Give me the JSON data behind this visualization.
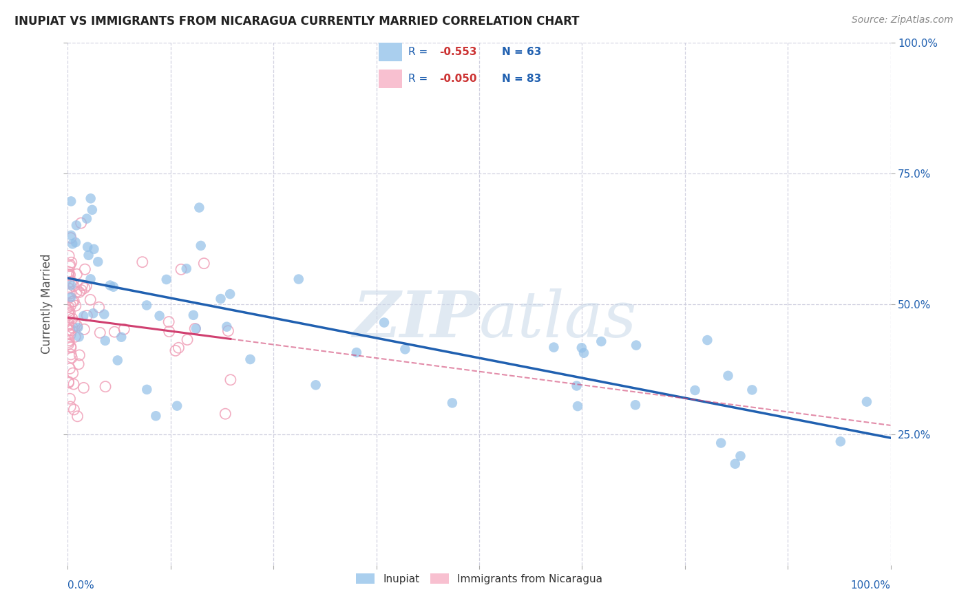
{
  "title": "INUPIAT VS IMMIGRANTS FROM NICARAGUA CURRENTLY MARRIED CORRELATION CHART",
  "source": "Source: ZipAtlas.com",
  "ylabel": "Currently Married",
  "inupiat_color": "#92bfe8",
  "nicaragua_color": "#f0a0b8",
  "inupiat_line_color": "#2060b0",
  "nicaragua_line_color": "#d04070",
  "watermark_zip": "ZIP",
  "watermark_atlas": "atlas",
  "background_color": "#ffffff",
  "legend_blue_patch": "#aacfee",
  "legend_pink_patch": "#f8c0d0",
  "legend_text_color": "#2060b0",
  "legend_r_color": "#cc3333",
  "grid_color": "#ccccdd",
  "tick_color": "#2060b0",
  "title_color": "#222222",
  "source_color": "#888888",
  "ylabel_color": "#555555"
}
